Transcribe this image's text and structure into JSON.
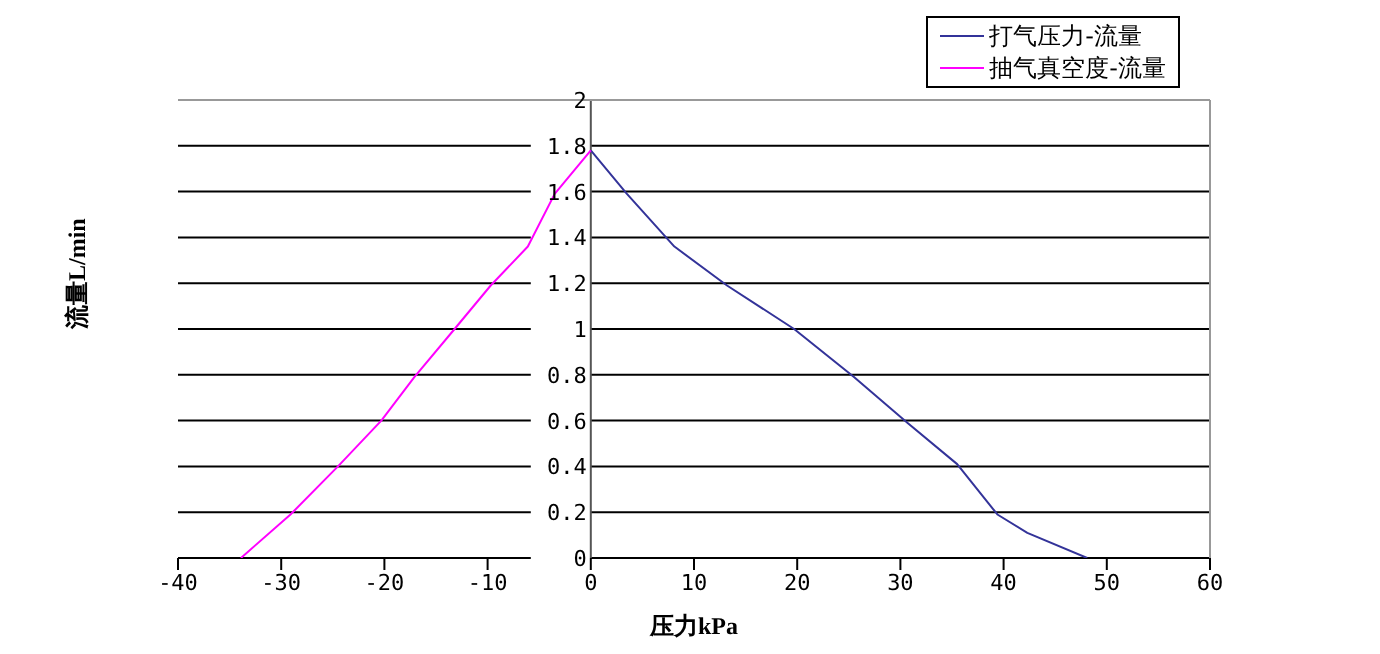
{
  "chart_data": {
    "type": "line",
    "xlabel": "压力kPa",
    "ylabel": "流量L/min",
    "series": [
      {
        "name": "打气压力-流量",
        "color": "#333399",
        "x": [
          0,
          3.5,
          8.1,
          13.2,
          19.7,
          25.5,
          30.7,
          35.5,
          39.4,
          42.3,
          48.1
        ],
        "values": [
          1.78,
          1.59,
          1.36,
          1.19,
          1.0,
          0.79,
          0.59,
          0.41,
          0.19,
          0.11,
          0
        ]
      },
      {
        "name": "抽气真空度-流量",
        "color": "#ff00ff",
        "x": [
          -33.9,
          -29.1,
          -24.5,
          -20.3,
          -17.1,
          -13.2,
          -9.7,
          -6.1,
          -3.5,
          0
        ],
        "values": [
          0,
          0.19,
          0.4,
          0.6,
          0.79,
          1.0,
          1.19,
          1.36,
          1.59,
          1.78
        ]
      }
    ],
    "xlim": [
      -40,
      60
    ],
    "xticks": [
      -40,
      -30,
      -20,
      -10,
      0,
      10,
      20,
      30,
      40,
      50,
      60
    ],
    "ylim": [
      0,
      2
    ],
    "yticks": [
      0,
      0.2,
      0.4,
      0.6,
      0.8,
      1,
      1.2,
      1.4,
      1.6,
      1.8,
      2
    ],
    "grid": "y",
    "legend": "top right",
    "marker": "none",
    "line_style": "solid"
  }
}
